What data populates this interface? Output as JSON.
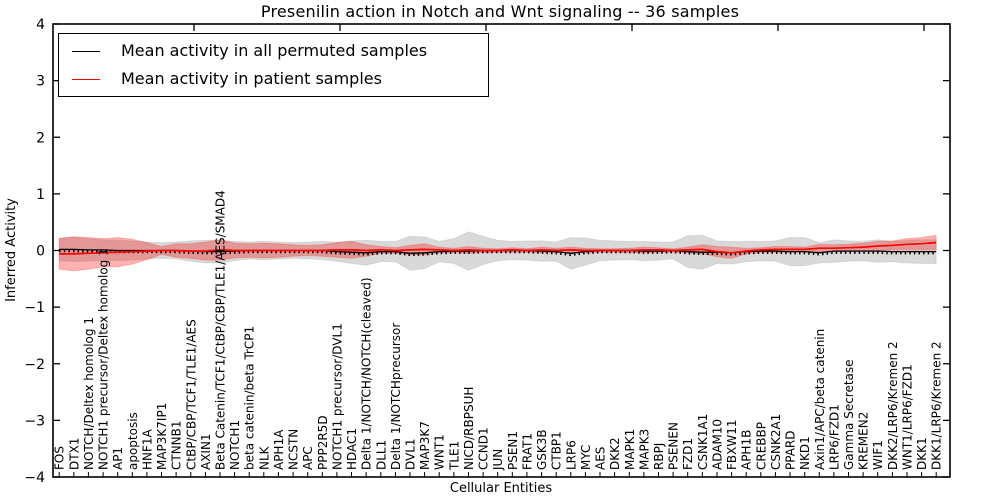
{
  "chart_data": {
    "type": "line",
    "title": "Presenilin action in Notch and Wnt signaling -- 36 samples",
    "xlabel": "Cellular Entities",
    "ylabel": "Inferred Activity",
    "ylim": [
      -4,
      4
    ],
    "ytick_labels": [
      "4",
      "3",
      "2",
      "1",
      "0",
      "−1",
      "−2",
      "−3",
      "−4"
    ],
    "legend_position": "upper left",
    "grid": false,
    "categories": [
      "FOS",
      "DTX1",
      "NOTCH/Deltex homolog 1",
      "NOTCH1 precursor/Deltex homolog 1",
      "AP1",
      "apoptosis",
      "HNF1A",
      "MAP3K7IP1",
      "CTNNB1",
      "CtBP/CBP/TCF1/TLE1/AES",
      "AXIN1",
      "Beta Catenin/TCF1/CtBP/CBP/TLE1/AES/SMAD4",
      "NOTCH1",
      "beta catenin/beta TrCP1",
      "NLK",
      "APH1A",
      "NCSTN",
      "APC",
      "PPP2R5D",
      "NOTCH1 precursor/DVL1",
      "HDAC1",
      "Delta 1/NOTCH/NOTCH(cleaved)",
      "DLL1",
      "Delta 1/NOTCHprecursor",
      "DVL1",
      "MAP3K7",
      "WNT1",
      "TLE1",
      "NICD/RBPSUH",
      "CCND1",
      "JUN",
      "PSEN1",
      "FRAT1",
      "GSK3B",
      "CTBP1",
      "LRP6",
      "MYC",
      "AES",
      "DKK2",
      "MAPK1",
      "MAPK3",
      "RBPJ",
      "PSENEN",
      "FZD1",
      "CSNK1A1",
      "ADAM10",
      "FBXW11",
      "APH1B",
      "CREBBP",
      "CSNK2A1",
      "PPARD",
      "NKD1",
      "Axin1/APC/beta catenin",
      "LRP6/FZD1",
      "Gamma Secretase",
      "KREMEN2",
      "WIF1",
      "DKK2/LRP6/Kremen 2",
      "WNT1/LRP6/FZD1",
      "DKK1",
      "DKK1/LRP6/Kremen 2"
    ],
    "series": [
      {
        "name": "Mean activity in all permuted samples",
        "color": "#000000",
        "band_color": "rgba(0,0,0,0.15)",
        "values": [
          0.02,
          0.02,
          0.01,
          0.01,
          0,
          0,
          0,
          0,
          0,
          -0.01,
          -0.02,
          -0.02,
          -0.01,
          0,
          0,
          0,
          0,
          0,
          0,
          -0.02,
          -0.03,
          -0.04,
          -0.02,
          -0.02,
          -0.05,
          -0.04,
          -0.02,
          -0.01,
          -0.01,
          0,
          0,
          0,
          0,
          -0.01,
          -0.02,
          -0.05,
          -0.02,
          0,
          0,
          0,
          -0.01,
          -0.01,
          0,
          -0.02,
          -0.03,
          -0.03,
          -0.04,
          -0.02,
          -0.01,
          -0.01,
          -0.02,
          -0.02,
          -0.04,
          -0.01,
          -0.01,
          -0.01,
          -0.01,
          -0.02,
          -0.02,
          -0.02,
          -0.02
        ],
        "band_halfwidth": [
          0.2,
          0.22,
          0.2,
          0.18,
          0.18,
          0.17,
          0.15,
          0.14,
          0.15,
          0.18,
          0.2,
          0.2,
          0.17,
          0.15,
          0.16,
          0.15,
          0.14,
          0.15,
          0.16,
          0.17,
          0.2,
          0.22,
          0.18,
          0.18,
          0.3,
          0.28,
          0.18,
          0.22,
          0.34,
          0.25,
          0.18,
          0.16,
          0.17,
          0.18,
          0.17,
          0.28,
          0.24,
          0.18,
          0.17,
          0.16,
          0.17,
          0.16,
          0.15,
          0.28,
          0.3,
          0.2,
          0.2,
          0.18,
          0.17,
          0.18,
          0.25,
          0.25,
          0.18,
          0.2,
          0.18,
          0.17,
          0.2,
          0.18,
          0.2,
          0.21,
          0.21
        ]
      },
      {
        "name": "Mean activity in patient samples",
        "color": "#ff0000",
        "band_color": "rgba(255,0,0,0.30)",
        "values": [
          -0.06,
          -0.06,
          -0.05,
          -0.04,
          -0.03,
          -0.02,
          -0.01,
          0,
          0,
          -0.01,
          -0.01,
          0.01,
          0,
          0,
          0,
          0,
          0,
          0,
          0,
          0.01,
          0.01,
          0,
          0.01,
          0,
          0.01,
          0.02,
          0.01,
          0,
          0.01,
          0,
          0,
          0.01,
          0,
          0.01,
          0,
          0.01,
          0,
          0,
          0,
          0,
          0.01,
          0.01,
          0,
          0.01,
          0.02,
          -0.02,
          -0.04,
          -0.01,
          0.01,
          0.02,
          0.02,
          0.02,
          0.04,
          0.04,
          0.05,
          0.06,
          0.08,
          0.09,
          0.11,
          0.12,
          0.14
        ],
        "band_halfwidth": [
          0.27,
          0.3,
          0.28,
          0.25,
          0.26,
          0.22,
          0.15,
          0.07,
          0.12,
          0.13,
          0.16,
          0.18,
          0.13,
          0.12,
          0.13,
          0.12,
          0.1,
          0.09,
          0.1,
          0.13,
          0.15,
          0.1,
          0.06,
          0.05,
          0.08,
          0.1,
          0.05,
          0.04,
          0.06,
          0.04,
          0.03,
          0.04,
          0.03,
          0.05,
          0.04,
          0.05,
          0.04,
          0.03,
          0.03,
          0.04,
          0.05,
          0.04,
          0.03,
          0.05,
          0.08,
          0.09,
          0.1,
          0.05,
          0.04,
          0.05,
          0.05,
          0.04,
          0.07,
          0.06,
          0.06,
          0.07,
          0.08,
          0.08,
          0.1,
          0.11,
          0.13
        ]
      }
    ]
  }
}
